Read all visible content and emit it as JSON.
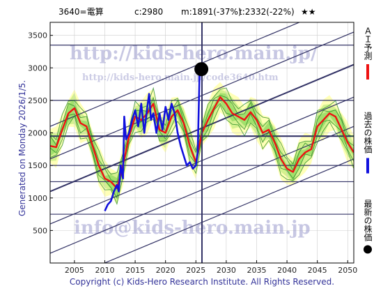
{
  "header": {
    "code_name": "3640=電算",
    "close": "c:2980",
    "min": "m:1891(-37%)",
    "target": "t:2332(-22%)",
    "stars": "★★"
  },
  "side_caption": "Generated on Monday 2026/1/5.",
  "footer": "Copyright (c) Kids-Hero Research Institute. All Rights Reserved.",
  "watermarks": {
    "url_main": "http://kids-hero.main.jp/",
    "url_code": "http://kids-hero.main.jp/code3640.htm",
    "email": "info@kids-hero.main.jp"
  },
  "legend": [
    {
      "label": "ＡＩ予測",
      "color": "#ee1111",
      "marker": "line"
    },
    {
      "label": "過去の株価",
      "color": "#1111dd",
      "marker": "line"
    },
    {
      "label": "最新の株価",
      "color": "#000000",
      "marker": "dot"
    }
  ],
  "colors": {
    "band_outer": "#ffffaa",
    "band_mid": "#ccee88",
    "band_inner": "#99dd66",
    "trend": "#333366",
    "forecast_thin": "#228822"
  },
  "chart_data": {
    "type": "line",
    "xlim": [
      2001,
      2051
    ],
    "ylim": [
      0,
      3700
    ],
    "xticks": [
      2005,
      2010,
      2015,
      2020,
      2025,
      2030,
      2035,
      2040,
      2045,
      2050
    ],
    "yticks": [
      500,
      1000,
      1500,
      2000,
      2500,
      3000,
      3500
    ],
    "hlines": [
      750,
      1250,
      1500,
      1950,
      2500,
      3350
    ],
    "vline_x": 2026,
    "latest": {
      "x": 2025.9,
      "y": 2980
    },
    "trendlines": [
      {
        "x0": 2001,
        "y0": -350,
        "x1": 2051,
        "y1": 1600
      },
      {
        "x0": 2001,
        "y0": 150,
        "x1": 2051,
        "y1": 2100
      },
      {
        "x0": 2001,
        "y0": 600,
        "x1": 2051,
        "y1": 2550
      },
      {
        "x0": 2001,
        "y0": 1100,
        "x1": 2051,
        "y1": 3050
      },
      {
        "x0": 2001,
        "y0": 1600,
        "x1": 2051,
        "y1": 3550
      },
      {
        "x0": 2001,
        "y0": 2100,
        "x1": 2051,
        "y1": 4050
      }
    ],
    "series": [
      {
        "name": "ＡＩ予測",
        "x": [
          2001,
          2002,
          2003,
          2004,
          2005,
          2006,
          2007,
          2008,
          2009,
          2010,
          2011,
          2012,
          2013,
          2014,
          2015,
          2016,
          2017,
          2018,
          2019,
          2020,
          2021,
          2022,
          2023,
          2024,
          2025,
          2026,
          2027,
          2028,
          2029,
          2030,
          2031,
          2032,
          2033,
          2034,
          2035,
          2036,
          2037,
          2038,
          2039,
          2040,
          2041,
          2042,
          2043,
          2044,
          2045,
          2046,
          2047,
          2048,
          2049,
          2050,
          2051
        ],
        "values": [
          1800,
          1780,
          2050,
          2300,
          2380,
          2150,
          2100,
          1800,
          1500,
          1300,
          1250,
          1150,
          1500,
          1950,
          2250,
          2200,
          2300,
          2450,
          2050,
          2000,
          2250,
          2350,
          2150,
          1800,
          1550,
          2000,
          2200,
          2380,
          2550,
          2450,
          2300,
          2250,
          2200,
          2320,
          2200,
          2000,
          2050,
          1850,
          1600,
          1450,
          1400,
          1600,
          1700,
          1750,
          2100,
          2200,
          2300,
          2250,
          2050,
          1850,
          1700
        ]
      },
      {
        "name": "過去の株価",
        "x": [
          2010.0,
          2010.5,
          2011.0,
          2011.5,
          2012.0,
          2012.3,
          2012.6,
          2013.0,
          2013.2,
          2013.5,
          2014.0,
          2014.5,
          2015.0,
          2015.5,
          2016.0,
          2016.5,
          2017.0,
          2017.3,
          2017.6,
          2018.0,
          2018.5,
          2019.0,
          2019.5,
          2020.0,
          2020.5,
          2021.0,
          2021.5,
          2022.0,
          2022.5,
          2023.0,
          2023.5,
          2024.0,
          2024.5,
          2025.0,
          2025.3,
          2025.6,
          2025.9
        ],
        "values": [
          800,
          900,
          950,
          1100,
          1200,
          1100,
          1500,
          1300,
          2250,
          1900,
          2000,
          2200,
          2350,
          2100,
          2450,
          2000,
          2400,
          2600,
          2200,
          2300,
          2000,
          2300,
          2050,
          2400,
          2200,
          2450,
          2300,
          2000,
          1800,
          1650,
          1500,
          1550,
          1450,
          1500,
          1700,
          2900,
          2980
        ]
      }
    ]
  }
}
